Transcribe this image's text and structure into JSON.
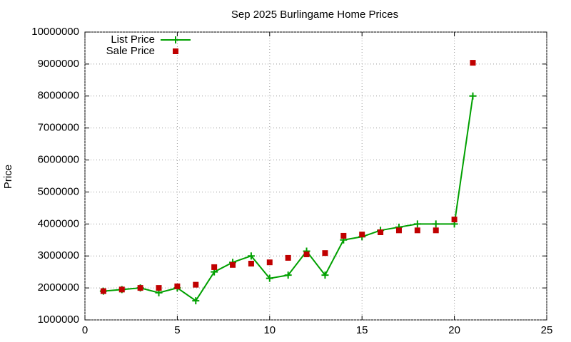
{
  "chart_data": {
    "type": "line",
    "title": "Sep 2025 Burlingame Home Prices",
    "y_label": "Price",
    "x": [
      1,
      2,
      3,
      4,
      5,
      6,
      7,
      8,
      9,
      10,
      11,
      12,
      13,
      14,
      15,
      16,
      17,
      18,
      19,
      20,
      21
    ],
    "series": [
      {
        "name": "List Price",
        "color": "#00a000",
        "type": "line",
        "values": [
          1900000,
          1950000,
          2000000,
          1850000,
          2000000,
          1600000,
          2500000,
          2800000,
          3000000,
          2300000,
          2400000,
          3150000,
          2400000,
          3500000,
          3600000,
          3800000,
          3900000,
          4000000,
          4000000,
          4000000,
          8000000
        ]
      },
      {
        "name": "Sale Price",
        "color": "#c00000",
        "type": "scatter",
        "values": [
          1900000,
          1950000,
          2000000,
          2000000,
          2050000,
          2100000,
          2650000,
          2720000,
          2760000,
          2800000,
          2940000,
          3050000,
          3090000,
          3630000,
          3670000,
          3740000,
          3800000,
          3800000,
          3800000,
          4140000,
          9040000
        ]
      }
    ],
    "xlim": [
      0,
      25
    ],
    "xticks": [
      0,
      5,
      10,
      15,
      20,
      25
    ],
    "ylim": [
      1000000,
      10000000
    ],
    "yticks": [
      1000000,
      2000000,
      3000000,
      4000000,
      5000000,
      6000000,
      7000000,
      8000000,
      9000000,
      10000000
    ],
    "grid": true,
    "legend": "top-left"
  }
}
